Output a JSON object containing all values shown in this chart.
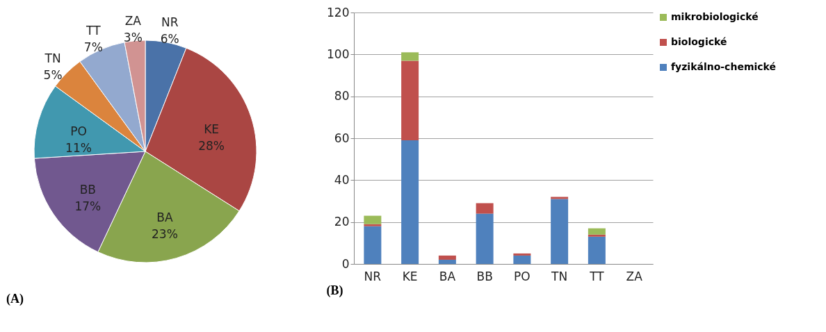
{
  "chart_data": [
    {
      "type": "pie",
      "title": "(A)",
      "categories": [
        "NR",
        "KE",
        "BA",
        "BB",
        "PO",
        "TN",
        "TT",
        "ZA"
      ],
      "values": [
        6,
        28,
        23,
        17,
        11,
        5,
        7,
        3
      ],
      "value_labels": [
        "6%",
        "28%",
        "23%",
        "17%",
        "11%",
        "5%",
        "7%",
        "3%"
      ],
      "colors": [
        "#4a72a8",
        "#aa4643",
        "#89a54e",
        "#71588f",
        "#4198af",
        "#db843d",
        "#93a9cf",
        "#d19392"
      ],
      "legend": false
    },
    {
      "type": "bar",
      "title": "(B)",
      "stacked": true,
      "categories": [
        "NR",
        "KE",
        "BA",
        "BB",
        "PO",
        "TN",
        "TT",
        "ZA"
      ],
      "series": [
        {
          "name": "fyzikálno-chemické",
          "color": "#4f81bd",
          "values": [
            18,
            59,
            2,
            24,
            4,
            31,
            13,
            0
          ]
        },
        {
          "name": "biologické",
          "color": "#c0504d",
          "values": [
            1,
            38,
            2,
            5,
            1,
            1,
            1,
            0
          ]
        },
        {
          "name": "mikrobiologické",
          "color": "#9bbb59",
          "values": [
            4,
            4,
            0,
            0,
            0,
            0,
            3,
            0
          ]
        }
      ],
      "ylim": [
        0,
        120
      ],
      "yticks": [
        0,
        20,
        40,
        60,
        80,
        100,
        120
      ],
      "grid": "y",
      "legend": "right"
    }
  ]
}
